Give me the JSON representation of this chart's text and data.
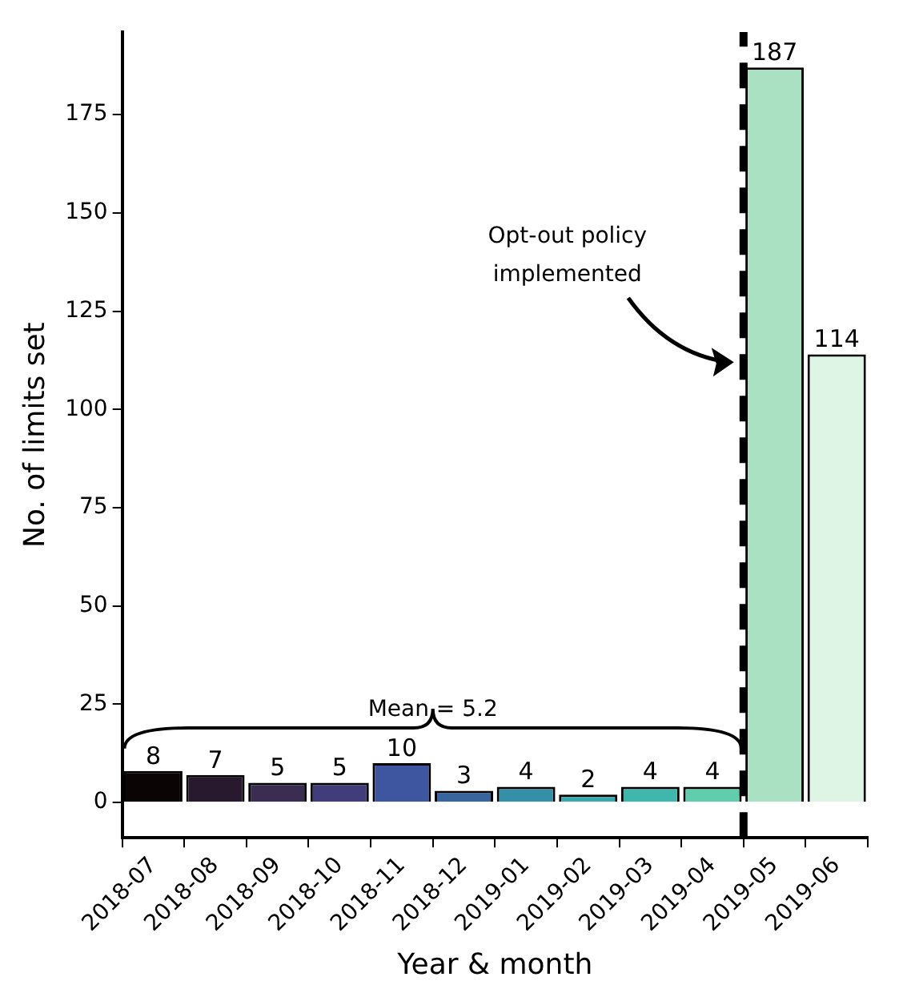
{
  "chart_data": {
    "type": "bar",
    "xlabel": "Year & month",
    "ylabel": "No. of limits set",
    "categories": [
      "2018-07",
      "2018-08",
      "2018-09",
      "2018-10",
      "2018-11",
      "2018-12",
      "2019-01",
      "2019-02",
      "2019-03",
      "2019-04",
      "2019-05",
      "2019-06"
    ],
    "values": [
      8,
      7,
      5,
      5,
      10,
      3,
      4,
      2,
      4,
      4,
      187,
      114
    ],
    "colors": [
      "#0b0405",
      "#28192f",
      "#3b2c52",
      "#413d7b",
      "#3e56a0",
      "#37659e",
      "#348fa7",
      "#38aaac",
      "#40b7ad",
      "#60ceac",
      "#a9e1c2",
      "#def5e5"
    ],
    "data_labels": true,
    "ylim": [
      -9,
      196
    ],
    "yticks": [
      0,
      25,
      50,
      75,
      100,
      125,
      150,
      175
    ],
    "grid": false,
    "legend": false,
    "ref_lines": [
      {
        "axis": "x",
        "value": "2019-05",
        "label": "Opt-out policy implemented",
        "color": "#000000",
        "line_style": "dashed"
      }
    ],
    "annotations": [
      "Mean = 5.2"
    ]
  }
}
